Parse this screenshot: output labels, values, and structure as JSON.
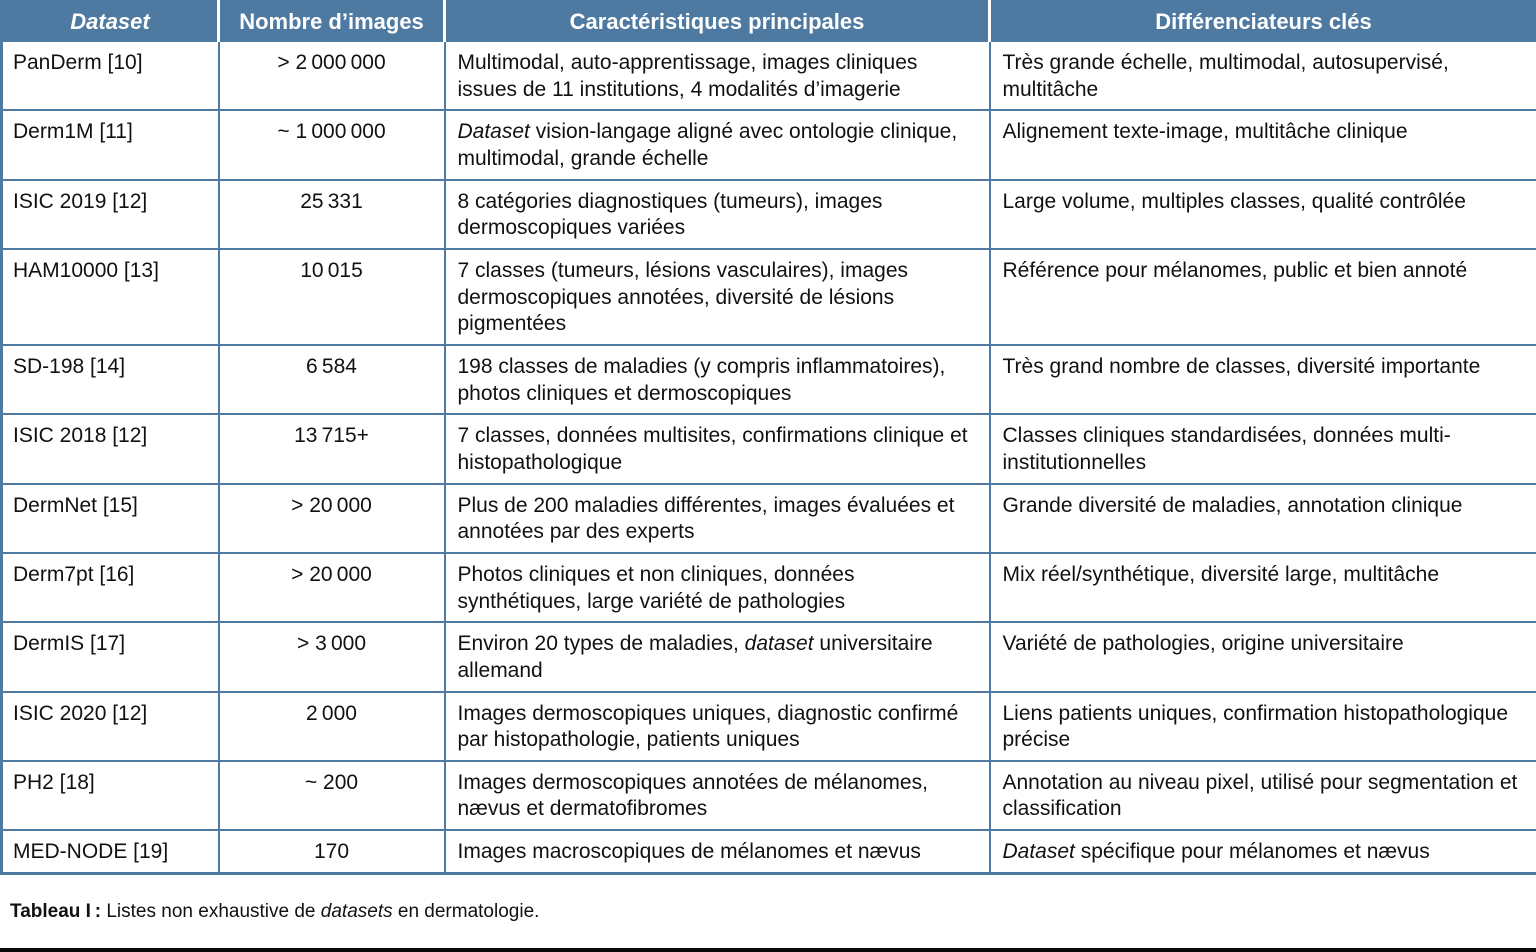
{
  "table": {
    "headers": [
      {
        "label": "Dataset"
      },
      {
        "label": "Nombre d’images"
      },
      {
        "label": "Caractéristiques principales"
      },
      {
        "label": "Différenciateurs clés"
      }
    ],
    "rows": [
      {
        "dataset": "PanDerm [10]",
        "count": "> 2 000 000",
        "size_class": "row-2line",
        "features": [
          {
            "t": "Multimodal, auto-apprentissage, images cliniques issues de 11 institutions, 4 modalités d’imagerie"
          }
        ],
        "differentiators": [
          {
            "t": "Très grande échelle, multimodal, autosupervisé, multitâche"
          }
        ]
      },
      {
        "dataset": "Derm1M [11]",
        "count": "~ 1 000 000",
        "size_class": "row-2line",
        "features": [
          {
            "t": "Dataset",
            "i": true
          },
          {
            "t": " vision-langage aligné avec ontologie clinique, multimodal, grande échelle"
          }
        ],
        "differentiators": [
          {
            "t": "Alignement texte-image, multitâche clinique"
          }
        ]
      },
      {
        "dataset": "ISIC 2019 [12]",
        "count": "25 331",
        "size_class": "row-2line",
        "features": [
          {
            "t": "8 catégories diagnostiques (tumeurs), images dermoscopiques variées"
          }
        ],
        "differentiators": [
          {
            "t": "Large volume, multiples classes, qualité contrôlée"
          }
        ]
      },
      {
        "dataset": "HAM10000 [13]",
        "count": "10 015",
        "size_class": "row-3line",
        "features": [
          {
            "t": "7 classes (tumeurs, lésions vasculaires), images dermoscopiques annotées, diversité de lésions pigmentées"
          }
        ],
        "differentiators": [
          {
            "t": "Référence pour mélanomes, public et bien annoté"
          }
        ]
      },
      {
        "dataset": "SD-198 [14]",
        "count": "6 584",
        "size_class": "row-2line",
        "features": [
          {
            "t": "198 classes de maladies (y compris inflammatoires), photos cliniques et dermoscopiques"
          }
        ],
        "differentiators": [
          {
            "t": "Très grand nombre de classes, diversité importante"
          }
        ]
      },
      {
        "dataset": "ISIC 2018 [12]",
        "count": "13 715+",
        "size_class": "row-2line",
        "features": [
          {
            "t": "7 classes, données multisites, confirmations clinique et histopathologique"
          }
        ],
        "differentiators": [
          {
            "t": "Classes cliniques standardisées, données multi-institutionnelles"
          }
        ]
      },
      {
        "dataset": "DermNet [15]",
        "count": "> 20 000",
        "size_class": "row-2line",
        "features": [
          {
            "t": "Plus de 200 maladies différentes, images évaluées et annotées par des experts"
          }
        ],
        "differentiators": [
          {
            "t": "Grande diversité de maladies, annotation clinique"
          }
        ]
      },
      {
        "dataset": "Derm7pt [16]",
        "count": "> 20 000",
        "size_class": "row-2line",
        "features": [
          {
            "t": "Photos cliniques et non cliniques, données synthétiques, large variété de pathologies"
          }
        ],
        "differentiators": [
          {
            "t": "Mix réel/synthétique, diversité large, multitâche"
          }
        ]
      },
      {
        "dataset": "DermIS [17]",
        "count": "> 3 000",
        "size_class": "row-2line",
        "features": [
          {
            "t": "Environ 20 types de maladies, "
          },
          {
            "t": "dataset",
            "i": true
          },
          {
            "t": " universitaire allemand"
          }
        ],
        "differentiators": [
          {
            "t": "Variété de pathologies, origine universitaire"
          }
        ]
      },
      {
        "dataset": "ISIC 2020 [12]",
        "count": "2 000",
        "size_class": "row-2line",
        "features": [
          {
            "t": "Images dermoscopiques uniques, diagnostic confirmé par histopathologie, patients uniques"
          }
        ],
        "differentiators": [
          {
            "t": "Liens patients uniques, confirmation histopathologique précise"
          }
        ]
      },
      {
        "dataset": "PH2 [18]",
        "count": "~ 200",
        "size_class": "row-2line",
        "features": [
          {
            "t": "Images dermoscopiques annotées de mélanomes, nævus et dermatofibromes"
          }
        ],
        "differentiators": [
          {
            "t": "Annotation au niveau pixel, utilisé pour segmentation et classification"
          }
        ]
      },
      {
        "dataset": "MED-NODE [19]",
        "count": "170",
        "size_class": "row-1line",
        "features": [
          {
            "t": "Images macroscopiques de mélanomes et nævus"
          }
        ],
        "differentiators": [
          {
            "t": "Dataset",
            "i": true
          },
          {
            "t": " spécifique pour mélanomes et nævus"
          }
        ]
      }
    ]
  },
  "caption": {
    "segments": [
      {
        "t": "Tableau I : ",
        "b": true
      },
      {
        "t": "Listes non exhaustive de "
      },
      {
        "t": "datasets",
        "i": true
      },
      {
        "t": " en dermatologie."
      }
    ]
  },
  "colors": {
    "header_background": "#4e7aa1",
    "header_text": "#ffffff",
    "grid_border": "#4e7aa1",
    "body_text": "#111111",
    "bottom_rule": "#0a0a0a"
  }
}
